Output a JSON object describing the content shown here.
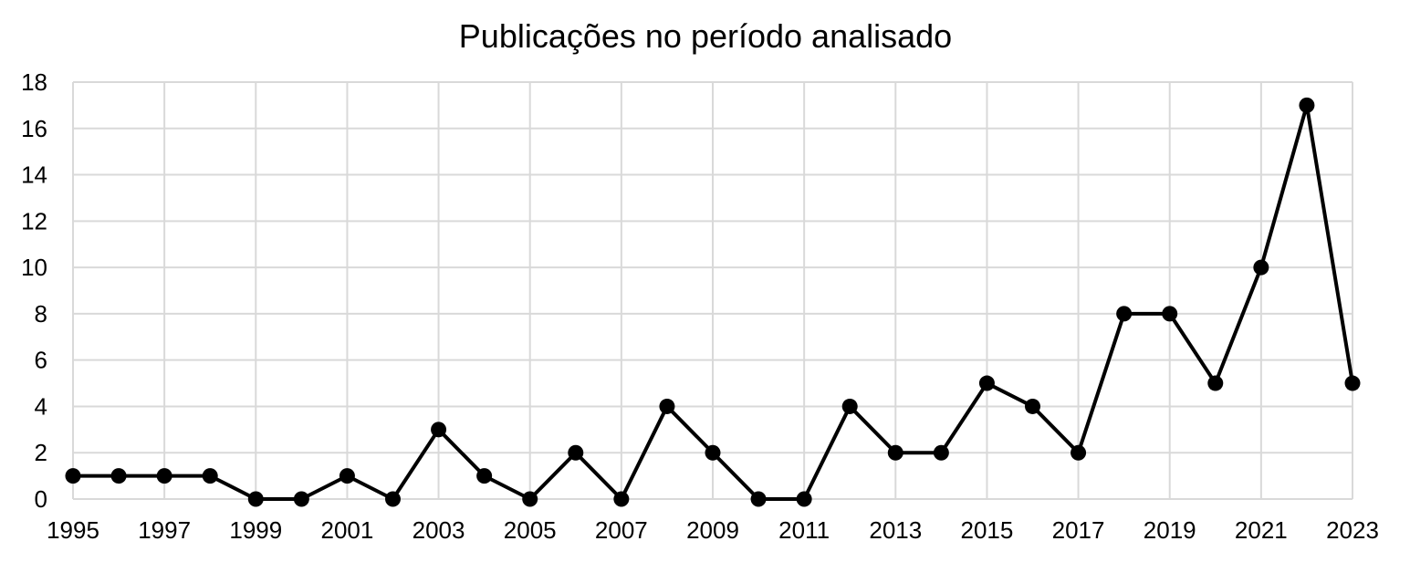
{
  "chart_data": {
    "type": "line",
    "title": "Publicações no período analisado",
    "xlabel": "",
    "ylabel": "",
    "x": [
      1995,
      1996,
      1997,
      1998,
      1999,
      2000,
      2001,
      2002,
      2003,
      2004,
      2005,
      2006,
      2007,
      2008,
      2009,
      2010,
      2011,
      2012,
      2013,
      2014,
      2015,
      2016,
      2017,
      2018,
      2019,
      2020,
      2021,
      2022,
      2023
    ],
    "x_tick_labels": [
      "1995",
      "1997",
      "1999",
      "2001",
      "2003",
      "2005",
      "2007",
      "2009",
      "2011",
      "2013",
      "2015",
      "2017",
      "2019",
      "2021",
      "2023"
    ],
    "y_tick_labels": [
      "0",
      "2",
      "4",
      "6",
      "8",
      "10",
      "12",
      "14",
      "16",
      "18"
    ],
    "series": [
      {
        "values": [
          1,
          1,
          1,
          1,
          0,
          0,
          1,
          0,
          3,
          1,
          0,
          2,
          0,
          4,
          2,
          0,
          0,
          4,
          2,
          2,
          5,
          4,
          2,
          8,
          8,
          5,
          10,
          17,
          5
        ],
        "color": "#000000"
      }
    ],
    "xlim": [
      1995,
      2023
    ],
    "ylim": [
      0,
      18
    ],
    "grid": true,
    "legend": "none"
  }
}
